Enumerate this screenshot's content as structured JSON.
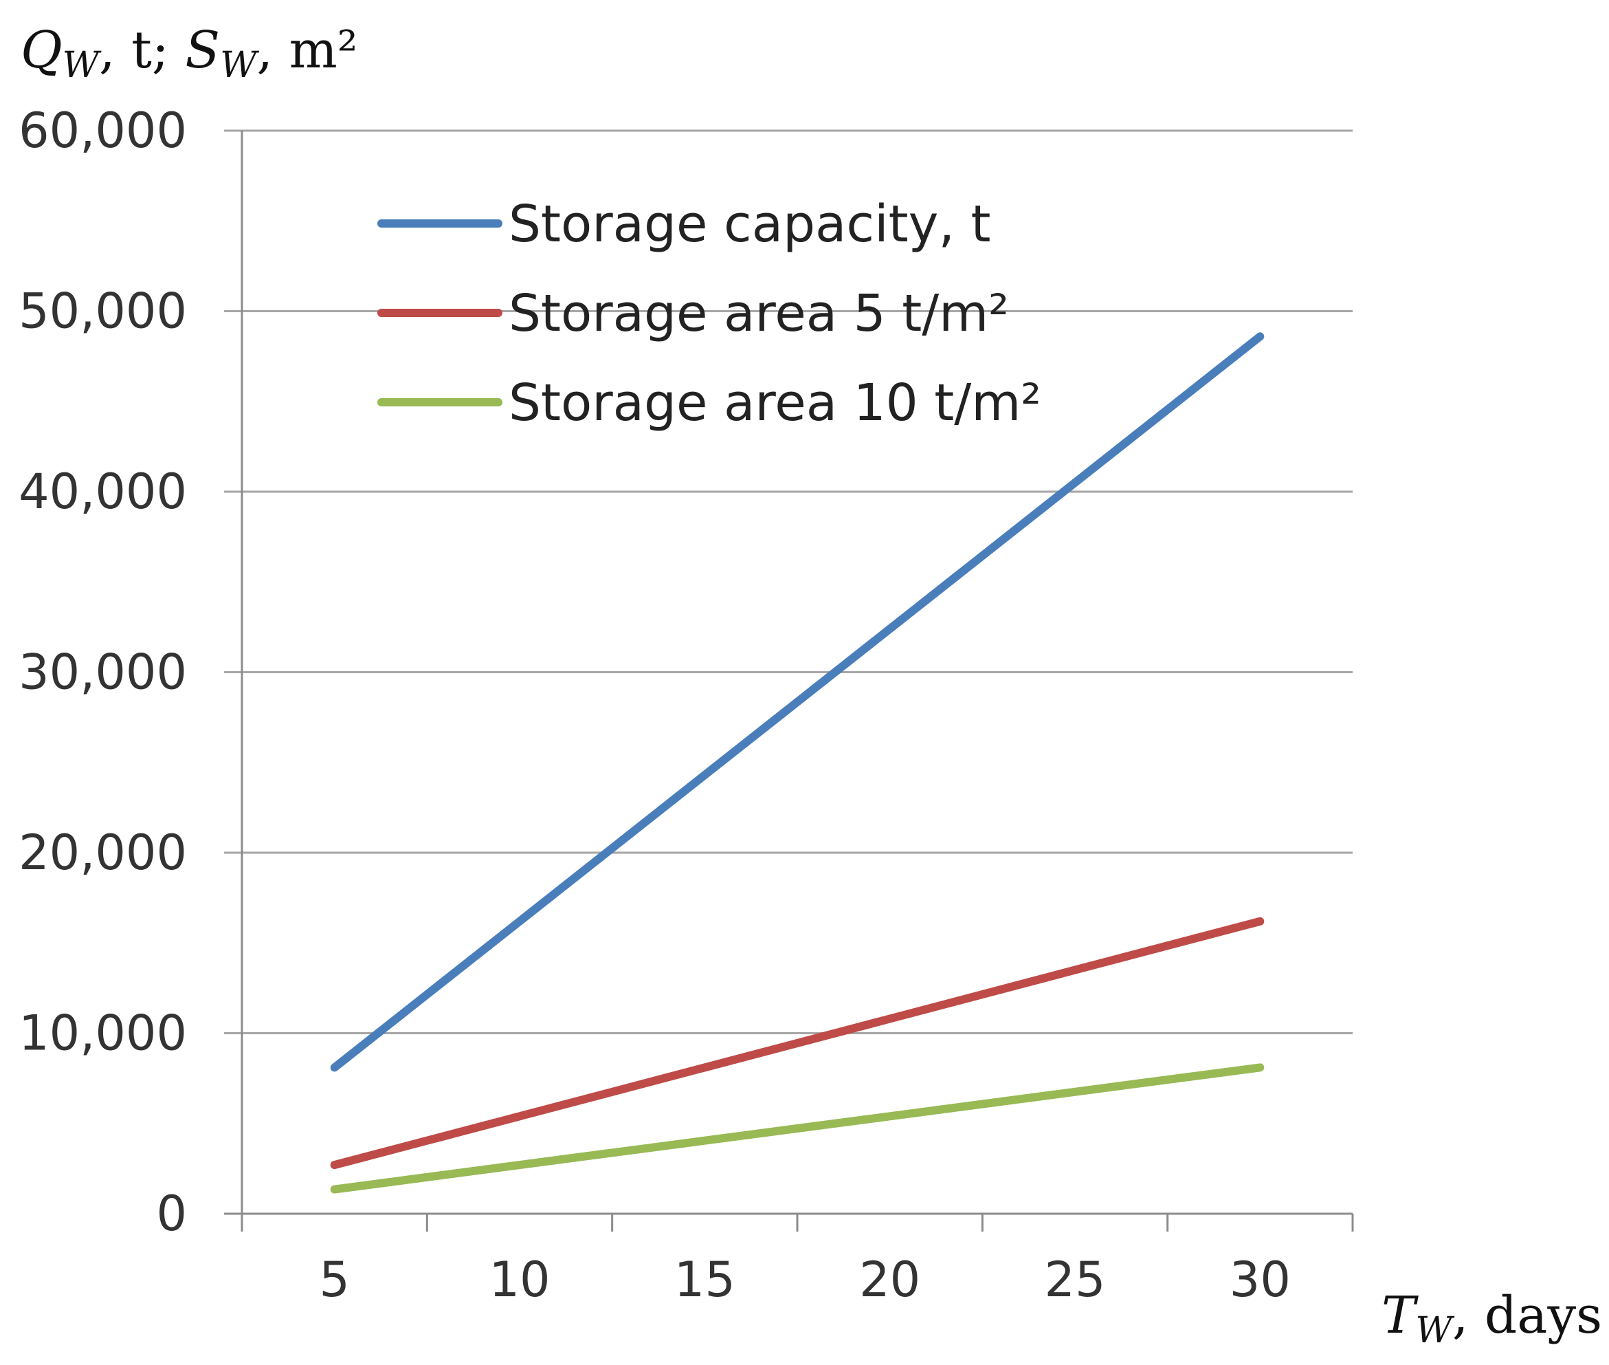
{
  "chart_data": {
    "type": "line",
    "ylabel": {
      "q_symbol": "Q",
      "q_sub": "W",
      "sep1": ", t; ",
      "s_symbol": "S",
      "s_sub": "W",
      "unit": ", m²"
    },
    "xlabel": {
      "symbol": "T",
      "sub": "W",
      "unit": ", days"
    },
    "x": [
      5,
      10,
      15,
      20,
      25,
      30
    ],
    "x_ticks": [
      "5",
      "10",
      "15",
      "20",
      "25",
      "30"
    ],
    "ylim": [
      0,
      60000
    ],
    "y_ticks": [
      {
        "value": 0,
        "label": "0"
      },
      {
        "value": 10000,
        "label": "10,000"
      },
      {
        "value": 20000,
        "label": "20,000"
      },
      {
        "value": 30000,
        "label": "30,000"
      },
      {
        "value": 40000,
        "label": "40,000"
      },
      {
        "value": 50000,
        "label": "50,000"
      },
      {
        "value": 60000,
        "label": "60,000"
      }
    ],
    "grid": true,
    "legend_position": "top-left",
    "series": [
      {
        "name": "Storage capacity, t",
        "color": "#4a7ebb",
        "values": [
          8100,
          16200,
          24300,
          32400,
          40500,
          48600
        ]
      },
      {
        "name": "Storage area 5 t/m²",
        "color": "#be4b48",
        "values": [
          2700,
          5400,
          8100,
          10800,
          13500,
          16200
        ]
      },
      {
        "name": "Storage area 10 t/m²",
        "color": "#98b954",
        "values": [
          1350,
          2700,
          4050,
          5400,
          6750,
          8100
        ]
      }
    ]
  }
}
